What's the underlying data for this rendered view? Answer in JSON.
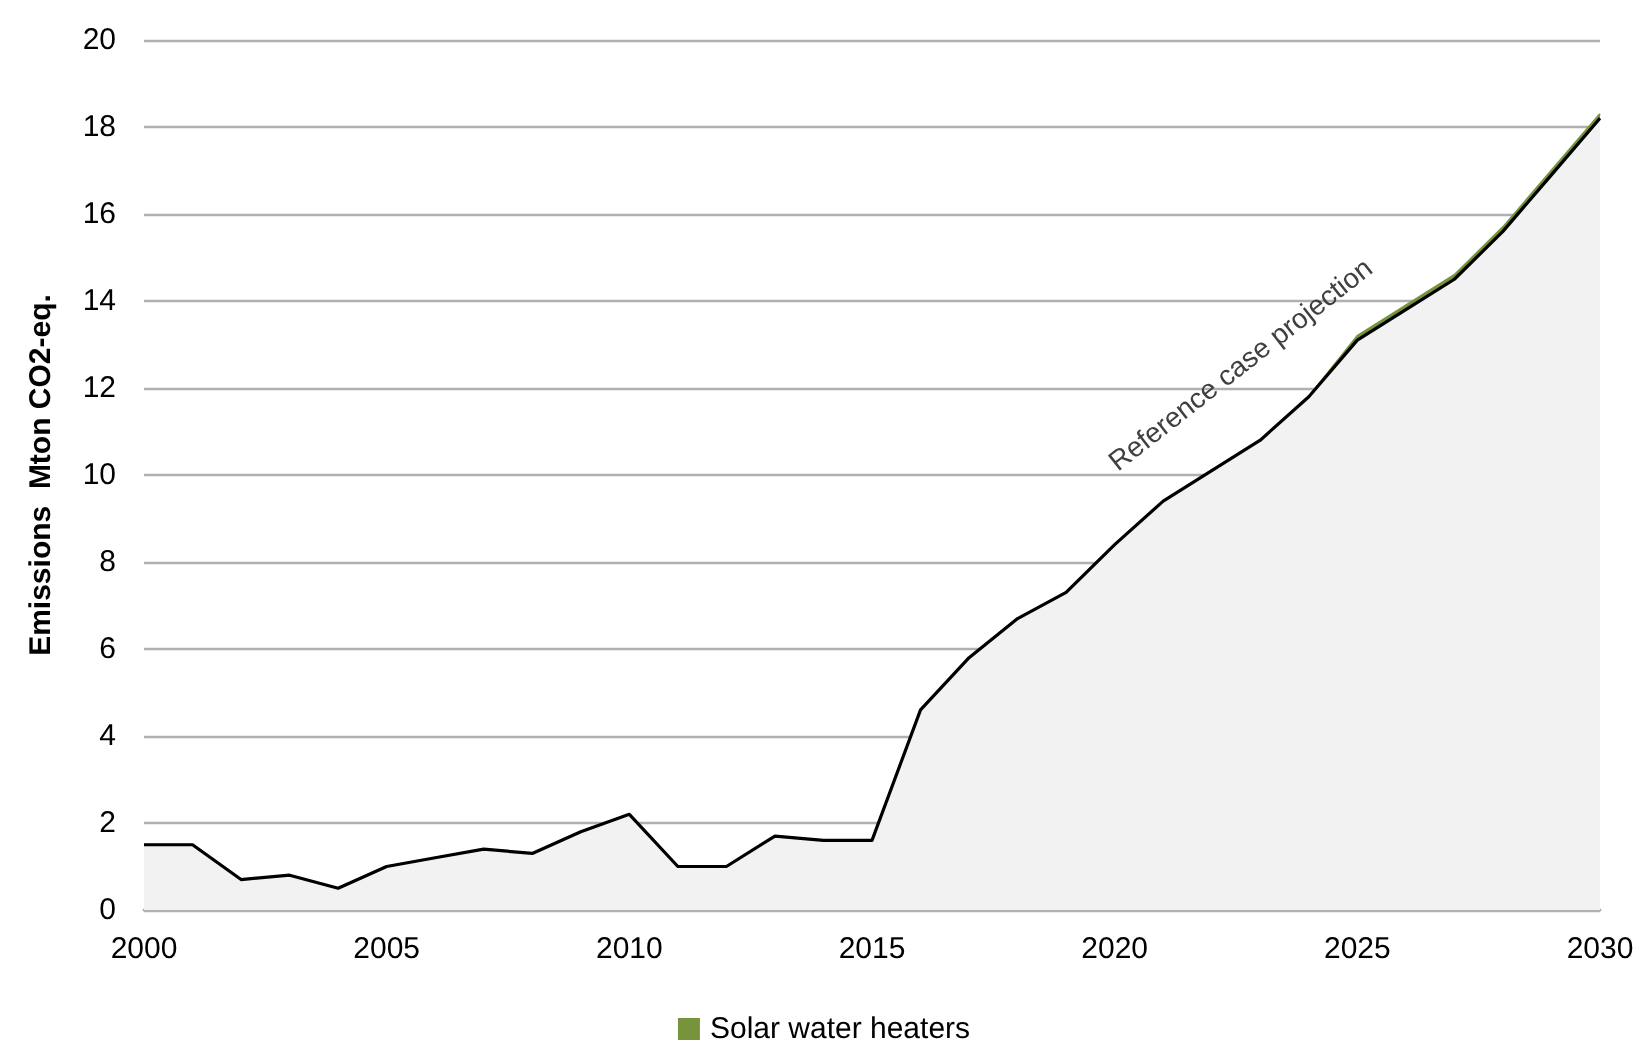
{
  "chart_data": {
    "type": "area",
    "ylabel": "Emissions  Mton CO2-eq.",
    "x": [
      2000,
      2001,
      2002,
      2003,
      2004,
      2005,
      2006,
      2007,
      2008,
      2009,
      2010,
      2011,
      2012,
      2013,
      2014,
      2015,
      2016,
      2017,
      2018,
      2019,
      2020,
      2021,
      2022,
      2023,
      2024,
      2025,
      2026,
      2027,
      2028,
      2029,
      2030
    ],
    "series": [
      {
        "color": "#f2f2f2",
        "values": [
          1.5,
          1.5,
          0.7,
          0.8,
          0.5,
          1.0,
          1.2,
          1.4,
          1.3,
          1.8,
          2.2,
          1.0,
          1.0,
          1.7,
          1.6,
          1.6,
          4.6,
          5.8,
          6.7,
          7.3,
          8.4,
          9.4,
          10.1,
          10.8,
          11.8,
          13.1,
          13.8,
          14.5,
          15.6,
          16.9,
          18.2
        ]
      },
      {
        "name": "Solar water heaters",
        "color": "#77933c",
        "values": [
          1.5,
          1.5,
          0.7,
          0.8,
          0.5,
          1.0,
          1.2,
          1.4,
          1.3,
          1.8,
          2.2,
          1.0,
          1.0,
          1.7,
          1.6,
          1.6,
          4.6,
          5.8,
          6.7,
          7.3,
          8.4,
          9.4,
          10.1,
          10.8,
          11.8,
          13.2,
          13.9,
          14.6,
          15.7,
          17.0,
          18.3
        ]
      }
    ],
    "xlim": [
      2000,
      2030
    ],
    "xticks": [
      2000,
      2005,
      2010,
      2015,
      2020,
      2025,
      2030
    ],
    "ylim": [
      0,
      20
    ],
    "yticks": [
      0,
      2,
      4,
      6,
      8,
      10,
      12,
      14,
      16,
      18,
      20
    ],
    "grid": "y",
    "legend": "bottom",
    "marker": "none",
    "annotations": [
      "Reference case projection"
    ]
  }
}
